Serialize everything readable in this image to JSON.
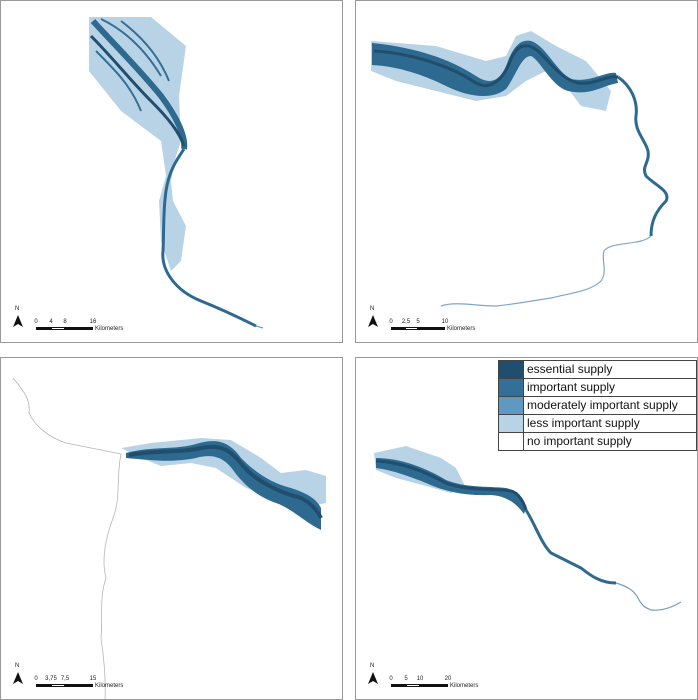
{
  "colors": {
    "essential": "#1f4e6e",
    "important": "#2e6a8f",
    "moderate": "#4f8db3",
    "less": "#9cc2dc",
    "none": "#ffffff",
    "river_thin": "#9aa3a8"
  },
  "legend": {
    "items": [
      {
        "label": "essential supply",
        "color": "#1f4e6e"
      },
      {
        "label": "important supply",
        "color": "#336f96"
      },
      {
        "label": "moderately important supply",
        "color": "#5f98c0"
      },
      {
        "label": "less important supply",
        "color": "#b9d3e6"
      },
      {
        "label": "no important supply",
        "color": "#ffffff"
      }
    ]
  },
  "panels": [
    {
      "north": "N",
      "scale": {
        "ticks": [
          "0",
          "4",
          "8",
          "16"
        ],
        "unit": "Kilometers"
      }
    },
    {
      "north": "N",
      "scale": {
        "ticks": [
          "0",
          "2,5",
          "5",
          "10"
        ],
        "unit": "Kilometers"
      }
    },
    {
      "north": "N",
      "scale": {
        "ticks": [
          "0",
          "3,75",
          "7,5",
          "15"
        ],
        "unit": "Kilometers"
      }
    },
    {
      "north": "N",
      "scale": {
        "ticks": [
          "0",
          "5",
          "10",
          "20"
        ],
        "unit": "Kilometers"
      }
    }
  ]
}
